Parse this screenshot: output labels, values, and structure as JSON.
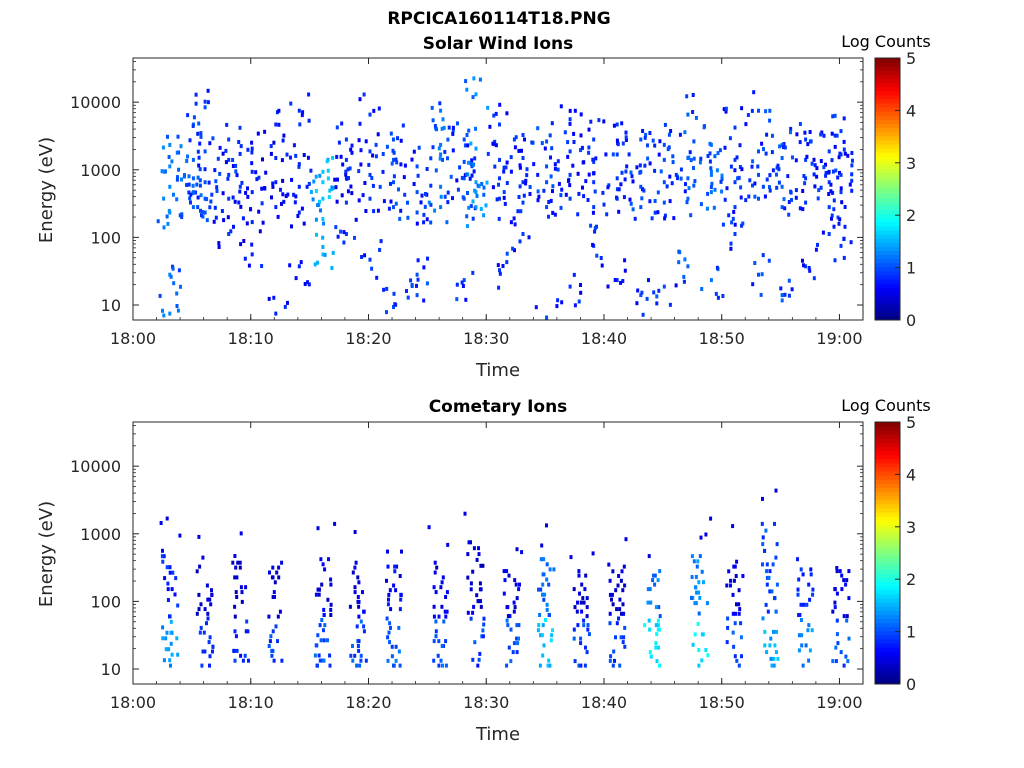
{
  "figure": {
    "suptitle": "RPCICA160114T18.PNG"
  },
  "colormap": {
    "name": "jet",
    "stops": [
      "#00007f",
      "#0000ff",
      "#007fff",
      "#00ffff",
      "#7fff7f",
      "#ffff00",
      "#ff7f00",
      "#ff0000",
      "#7f0000"
    ]
  },
  "chart_data": [
    {
      "type": "heatmap",
      "title": "Solar Wind Ions",
      "xlabel": "Time",
      "ylabel": "Energy (eV)",
      "x_range": [
        "18:00",
        "19:02"
      ],
      "x_ticks": [
        "18:00",
        "18:10",
        "18:20",
        "18:30",
        "18:40",
        "18:50",
        "19:00"
      ],
      "y_scale": "log",
      "y_range": [
        6,
        45000
      ],
      "y_ticks": [
        10,
        100,
        1000,
        10000
      ],
      "y_tick_labels": [
        "10",
        "100",
        "1000",
        "10000"
      ],
      "colorbar": {
        "label": "Log Counts",
        "range": [
          0,
          5
        ],
        "ticks": [
          "0",
          "1",
          "2",
          "3",
          "4",
          "5"
        ]
      },
      "columns": [
        {
          "t": "18:03",
          "e": [
            600,
            1200,
            2500,
            250,
            30,
            8
          ],
          "c": 1.3
        },
        {
          "t": "18:05",
          "e": [
            300,
            500,
            800,
            1500,
            5000
          ],
          "c": 1.1
        },
        {
          "t": "18:06",
          "e": [
            250,
            400,
            700,
            2000,
            9000
          ],
          "c": 1.0
        },
        {
          "t": "18:08",
          "e": [
            400,
            900,
            1500,
            3000,
            120
          ],
          "c": 0.9
        },
        {
          "t": "18:10",
          "e": [
            500,
            1000,
            2200,
            180,
            60
          ],
          "c": 0.8
        },
        {
          "t": "18:12",
          "e": [
            300,
            700,
            1600,
            5000,
            8
          ],
          "c": 0.8
        },
        {
          "t": "18:14",
          "e": [
            250,
            600,
            1300,
            8000,
            40
          ],
          "c": 0.8
        },
        {
          "t": "18:16",
          "e": [
            400,
            700,
            1000,
            200,
            60
          ],
          "c": 1.6
        },
        {
          "t": "18:18",
          "e": [
            350,
            800,
            1500,
            3000,
            120
          ],
          "c": 0.9
        },
        {
          "t": "18:20",
          "e": [
            400,
            900,
            2000,
            7000,
            50
          ],
          "c": 0.9
        },
        {
          "t": "18:22",
          "e": [
            300,
            700,
            1500,
            3000,
            10
          ],
          "c": 1.0
        },
        {
          "t": "18:24",
          "e": [
            250,
            500,
            1200,
            30,
            15
          ],
          "c": 1.0
        },
        {
          "t": "18:26",
          "e": [
            1800,
            2500,
            600,
            300,
            8000
          ],
          "c": 1.2
        },
        {
          "t": "18:28",
          "e": [
            400,
            800,
            1400,
            3000,
            25
          ],
          "c": 1.0
        },
        {
          "t": "18:29",
          "e": [
            300,
            500,
            700,
            2200,
            14000
          ],
          "c": 1.4
        },
        {
          "t": "18:31",
          "e": [
            400,
            800,
            1500,
            5000,
            35
          ],
          "c": 0.9
        },
        {
          "t": "18:33",
          "e": [
            350,
            700,
            1600,
            3500,
            120
          ],
          "c": 0.9
        },
        {
          "t": "18:35",
          "e": [
            300,
            700,
            1200,
            2800,
            7
          ],
          "c": 1.0
        },
        {
          "t": "18:37",
          "e": [
            400,
            900,
            2000,
            6000,
            20
          ],
          "c": 0.9
        },
        {
          "t": "18:39",
          "e": [
            300,
            700,
            1400,
            3000,
            80
          ],
          "c": 0.9
        },
        {
          "t": "18:41",
          "e": [
            400,
            800,
            1800,
            5000,
            25
          ],
          "c": 0.9
        },
        {
          "t": "18:43",
          "e": [
            300,
            600,
            1000,
            3000,
            15
          ],
          "c": 1.0
        },
        {
          "t": "18:45",
          "e": [
            350,
            700,
            1500,
            2500,
            20
          ],
          "c": 1.0
        },
        {
          "t": "18:47",
          "e": [
            400,
            800,
            1600,
            7000,
            40
          ],
          "c": 1.1
        },
        {
          "t": "18:49",
          "e": [
            500,
            1000,
            2500,
            900,
            25
          ],
          "c": 1.2
        },
        {
          "t": "18:51",
          "e": [
            300,
            700,
            1500,
            4500,
            120
          ],
          "c": 0.9
        },
        {
          "t": "18:53",
          "e": [
            400,
            900,
            2000,
            8000,
            30
          ],
          "c": 1.0
        },
        {
          "t": "18:55",
          "e": [
            300,
            600,
            1600,
            2500,
            15
          ],
          "c": 1.1
        },
        {
          "t": "18:57",
          "e": [
            350,
            800,
            1500,
            3000,
            40
          ],
          "c": 0.9
        },
        {
          "t": "18:59",
          "e": [
            300,
            700,
            1000,
            2000,
            120
          ],
          "c": 0.9
        },
        {
          "t": "19:00",
          "e": [
            500,
            900,
            1800,
            4000,
            80
          ],
          "c": 0.9
        }
      ]
    },
    {
      "type": "heatmap",
      "title": "Cometary Ions",
      "xlabel": "Time",
      "ylabel": "Energy (eV)",
      "x_range": [
        "18:00",
        "19:02"
      ],
      "x_ticks": [
        "18:00",
        "18:10",
        "18:20",
        "18:30",
        "18:40",
        "18:50",
        "19:00"
      ],
      "y_scale": "log",
      "y_range": [
        6,
        45000
      ],
      "y_ticks": [
        10,
        100,
        1000,
        10000
      ],
      "y_tick_labels": [
        "10",
        "100",
        "1000",
        "10000"
      ],
      "colorbar": {
        "label": "Log Counts",
        "range": [
          0,
          5
        ],
        "ticks": [
          "0",
          "1",
          "2",
          "3",
          "4",
          "5"
        ]
      },
      "bursts": [
        {
          "t": "18:03",
          "top": 600,
          "c": 1.5
        },
        {
          "t": "18:06",
          "top": 350,
          "c": 1.0
        },
        {
          "t": "18:09",
          "top": 400,
          "c": 1.0
        },
        {
          "t": "18:12",
          "top": 400,
          "c": 1.1
        },
        {
          "t": "18:16",
          "top": 450,
          "c": 1.2
        },
        {
          "t": "18:19",
          "top": 400,
          "c": 1.2
        },
        {
          "t": "18:22",
          "top": 350,
          "c": 1.3
        },
        {
          "t": "18:26",
          "top": 400,
          "c": 1.2
        },
        {
          "t": "18:29",
          "top": 800,
          "c": 1.1
        },
        {
          "t": "18:32",
          "top": 300,
          "c": 1.2
        },
        {
          "t": "18:35",
          "top": 450,
          "c": 1.8
        },
        {
          "t": "18:38",
          "top": 300,
          "c": 1.1
        },
        {
          "t": "18:41",
          "top": 350,
          "c": 1.1
        },
        {
          "t": "18:44",
          "top": 300,
          "c": 1.9
        },
        {
          "t": "18:48",
          "top": 500,
          "c": 2.0
        },
        {
          "t": "18:51",
          "top": 350,
          "c": 1.2
        },
        {
          "t": "18:54",
          "top": 1500,
          "c": 1.7
        },
        {
          "t": "18:57",
          "top": 450,
          "c": 1.5
        },
        {
          "t": "19:00",
          "top": 300,
          "c": 1.2
        }
      ]
    }
  ]
}
